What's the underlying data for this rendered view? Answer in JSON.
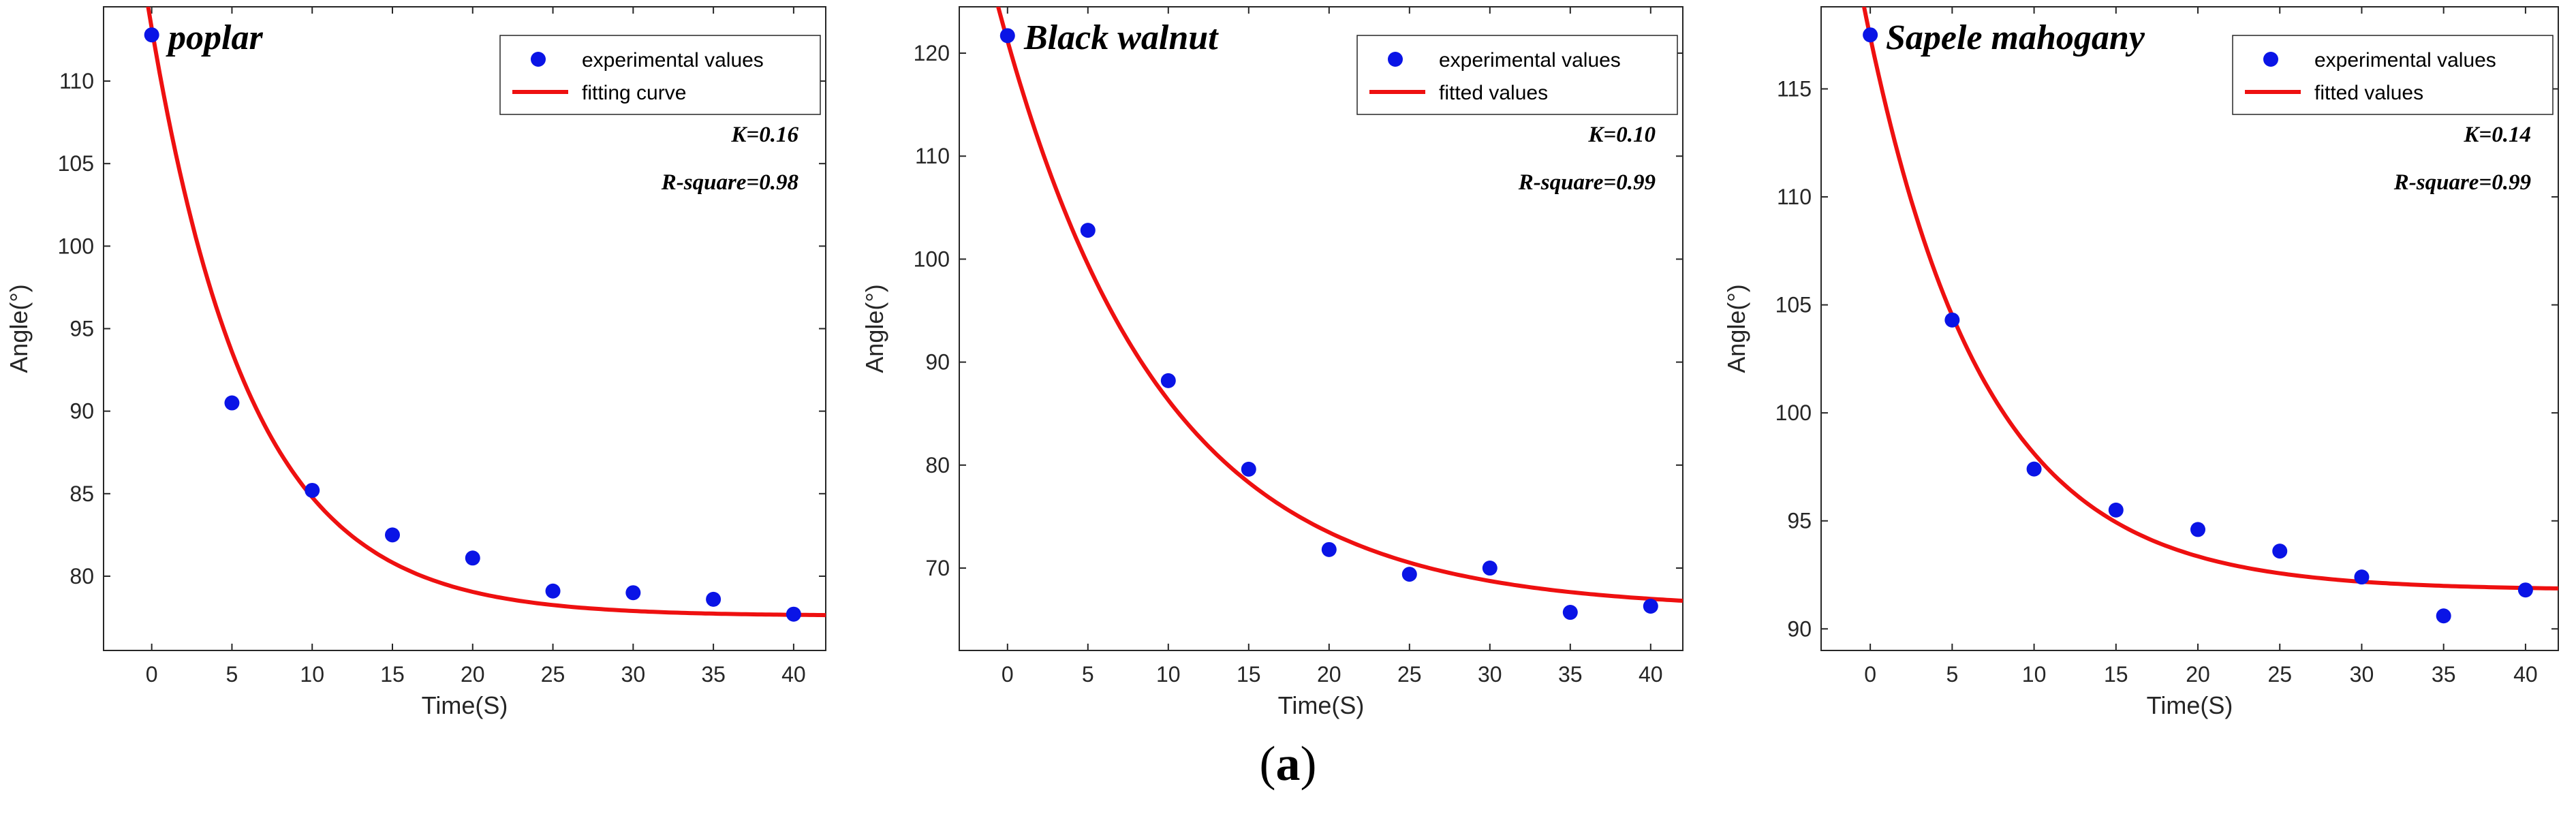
{
  "caption": {
    "open": "(",
    "letter": "a",
    "close": ")"
  },
  "colors": {
    "points": "#0a14e6",
    "curve": "#ee1010",
    "axis": "#262626"
  },
  "chart_data": [
    {
      "type": "scatter",
      "title": "poplar",
      "xlabel": "Time(S)",
      "ylabel": "Angle(°)",
      "xlim": [
        -3,
        42
      ],
      "ylim": [
        75.5,
        114.5
      ],
      "xticks": [
        0,
        5,
        10,
        15,
        20,
        25,
        30,
        35,
        40
      ],
      "yticks": [
        80,
        85,
        90,
        95,
        100,
        105,
        110
      ],
      "series": [
        {
          "name": "experimental values",
          "kind": "points",
          "x": [
            0,
            5,
            10,
            15,
            20,
            25,
            30,
            35,
            40
          ],
          "y": [
            112.8,
            90.5,
            85.2,
            82.5,
            81.1,
            79.1,
            79.0,
            78.6,
            77.7
          ]
        },
        {
          "name": "fitting curve",
          "kind": "fit",
          "model": "A*exp(-K*t)+C",
          "A": 35.6,
          "K": 0.16,
          "C": 77.6
        }
      ],
      "annotations": [
        "K=0.16",
        "R-square=0.98"
      ],
      "legend": "top-right"
    },
    {
      "type": "scatter",
      "title": "Black walnut",
      "xlabel": "Time(S)",
      "ylabel": "Angle(°)",
      "xlim": [
        -3,
        42
      ],
      "ylim": [
        62,
        124.5
      ],
      "xticks": [
        0,
        5,
        10,
        15,
        20,
        25,
        30,
        35,
        40
      ],
      "yticks": [
        70,
        80,
        90,
        100,
        110,
        120
      ],
      "series": [
        {
          "name": "experimental values",
          "kind": "points",
          "x": [
            0,
            5,
            10,
            15,
            20,
            25,
            30,
            35,
            40
          ],
          "y": [
            121.7,
            102.8,
            88.2,
            79.6,
            71.8,
            69.4,
            70.0,
            65.7,
            66.3
          ]
        },
        {
          "name": "fitted values",
          "kind": "fit",
          "model": "A*exp(-K*t)+C",
          "A": 55.2,
          "K": 0.1,
          "C": 66.0
        }
      ],
      "annotations": [
        "K=0.10",
        "R-square=0.99"
      ],
      "legend": "top-right"
    },
    {
      "type": "scatter",
      "title": "Sapele mahogany",
      "xlabel": "Time(S)",
      "ylabel": "Angle(°)",
      "xlim": [
        -3,
        42
      ],
      "ylim": [
        89,
        118.8
      ],
      "xticks": [
        0,
        5,
        10,
        15,
        20,
        25,
        30,
        35,
        40
      ],
      "yticks": [
        90,
        95,
        100,
        105,
        110,
        115
      ],
      "series": [
        {
          "name": "experimental values",
          "kind": "points",
          "x": [
            0,
            5,
            10,
            15,
            20,
            25,
            30,
            35,
            40
          ],
          "y": [
            117.5,
            104.3,
            97.4,
            95.5,
            94.6,
            93.6,
            92.4,
            90.6,
            91.8
          ]
        },
        {
          "name": "fitted values",
          "kind": "fit",
          "model": "A*exp(-K*t)+C",
          "A": 25.6,
          "K": 0.14,
          "C": 91.8
        }
      ],
      "annotations": [
        "K=0.14",
        "R-square=0.99"
      ],
      "legend": "top-right"
    }
  ]
}
